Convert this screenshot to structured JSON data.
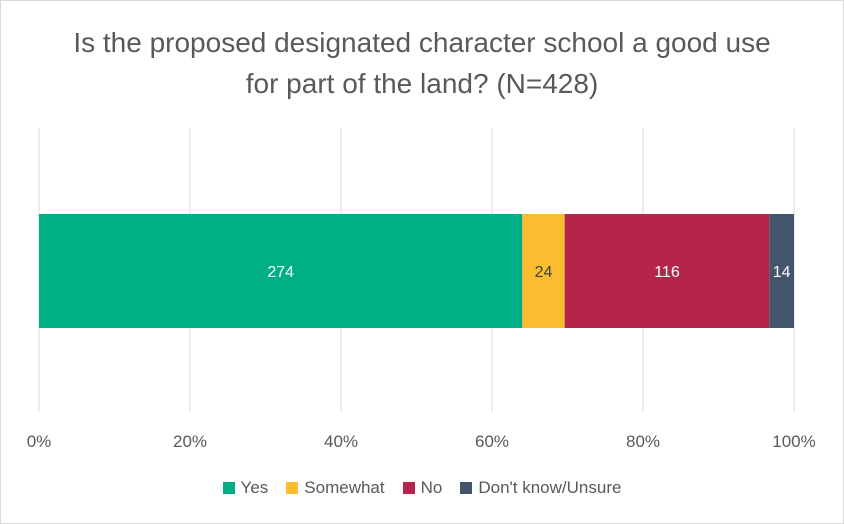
{
  "chart_data": {
    "type": "bar",
    "orientation": "horizontal",
    "stacked": "100%",
    "title": "Is the proposed designated character school a good use for part of the land? (N=428)",
    "categories": [
      ""
    ],
    "series": [
      {
        "name": "Yes",
        "values": [
          274
        ],
        "color": "#00b084"
      },
      {
        "name": "Somewhat",
        "values": [
          24
        ],
        "color": "#fbbd2f"
      },
      {
        "name": "No",
        "values": [
          116
        ],
        "color": "#b5244b"
      },
      {
        "name": "Don't know/Unsure",
        "values": [
          14
        ],
        "color": "#44546a"
      }
    ],
    "data_labels": [
      "274",
      "24",
      "116",
      "14"
    ],
    "x_ticks": [
      "0%",
      "20%",
      "40%",
      "60%",
      "80%",
      "100%"
    ],
    "xlim": [
      0,
      100
    ],
    "grid": true,
    "legend_position": "bottom",
    "label_colors": {
      "light": "#ffffff",
      "dark": "#404040"
    }
  }
}
